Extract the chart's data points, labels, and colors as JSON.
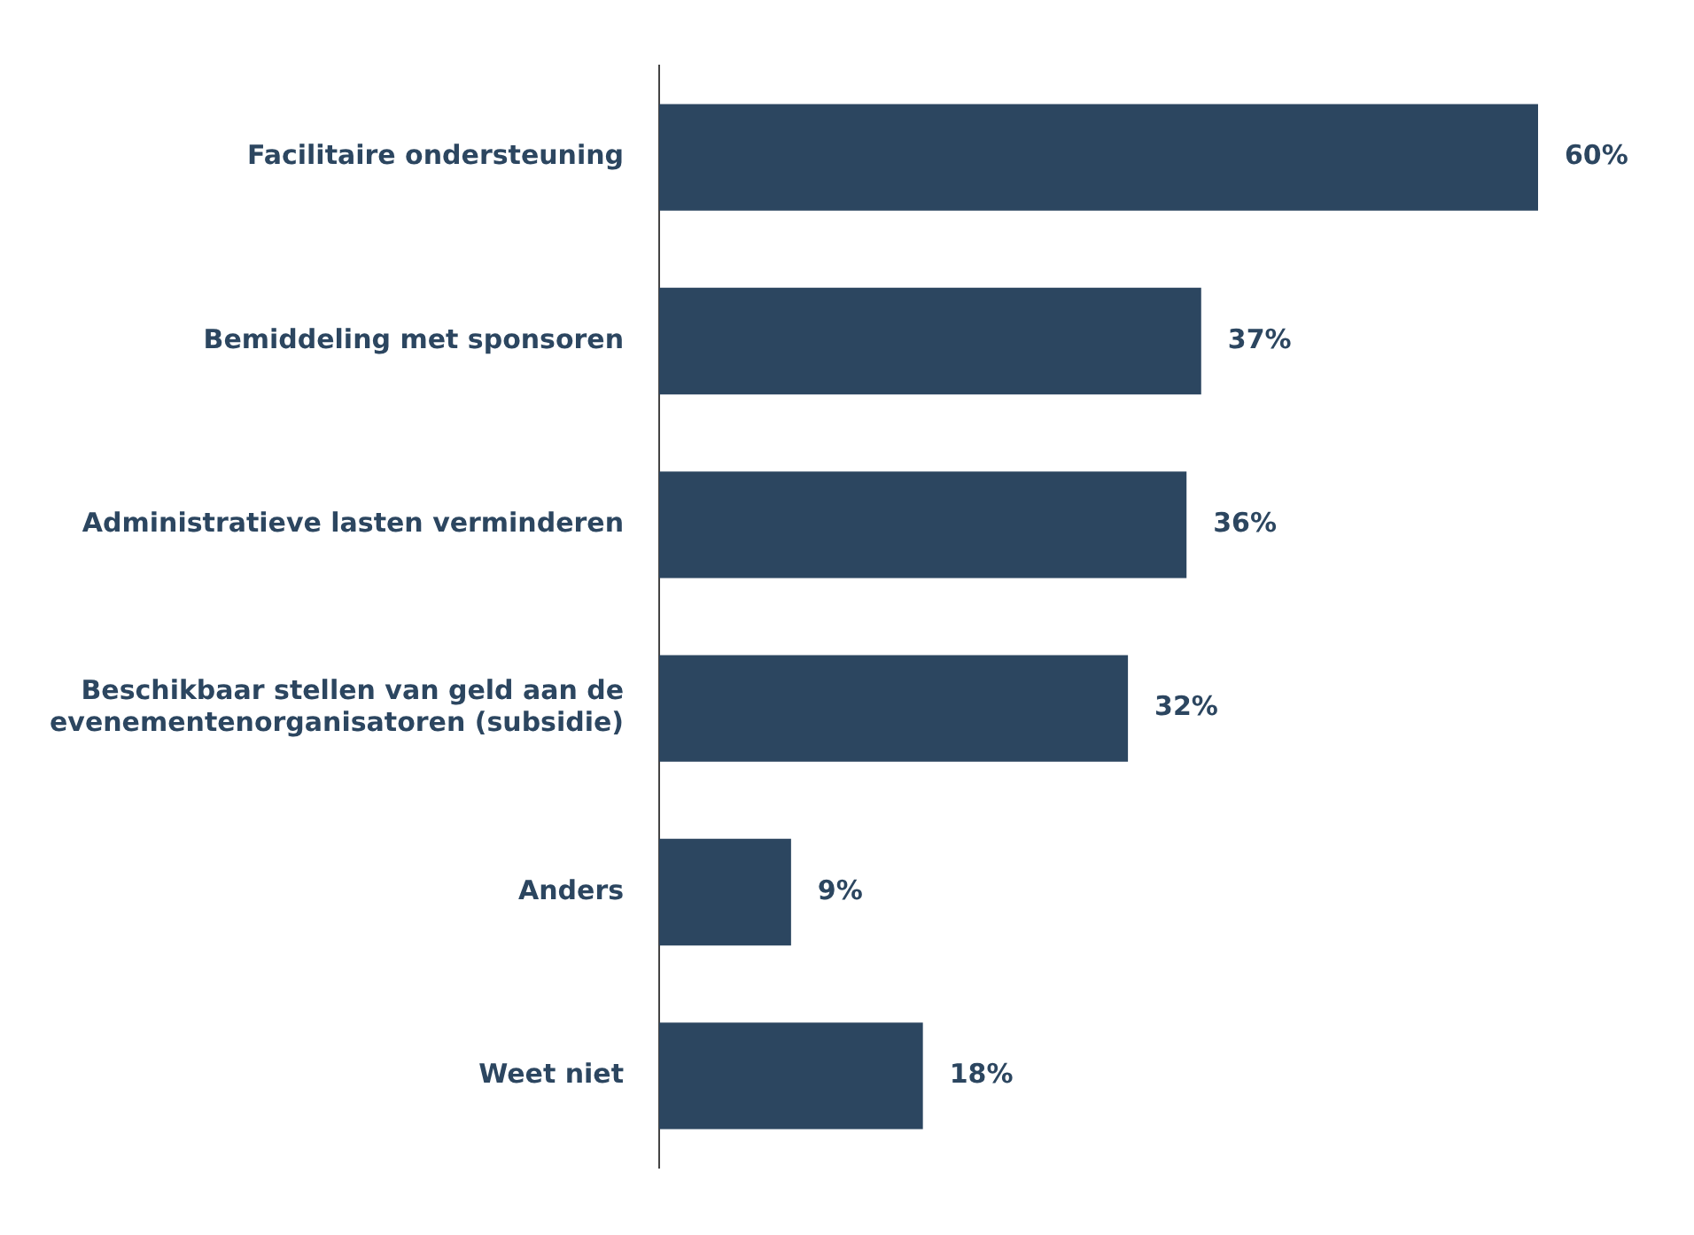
{
  "chart_data": {
    "type": "bar",
    "orientation": "horizontal",
    "categories": [
      "Facilitaire ondersteuning",
      "Bemiddeling met sponsoren",
      "Administratieve lasten verminderen",
      "Beschikbaar stellen van geld aan de evenementenorganisatoren (subsidie)",
      "Anders",
      "Weet niet"
    ],
    "values": [
      60,
      37,
      36,
      32,
      9,
      18
    ],
    "value_labels": [
      "60%",
      "37%",
      "36%",
      "32%",
      "9%",
      "18%"
    ],
    "color": "#2c4660"
  }
}
